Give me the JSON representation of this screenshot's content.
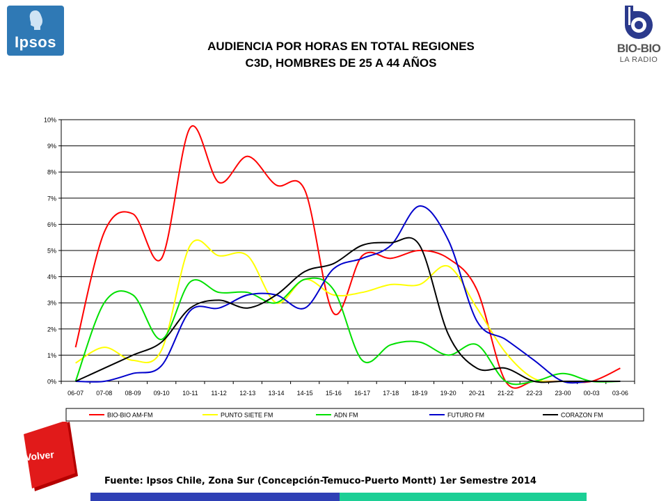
{
  "header": {
    "title_line1": "AUDIENCIA POR HORAS EN TOTAL REGIONES",
    "title_line2": "C3D, HOMBRES DE 25 A 44 AÑOS",
    "logo_left_text": "Ipsos",
    "logo_right_name": "BIO-BIO",
    "logo_right_sub": "LA RADIO"
  },
  "chart_data": {
    "type": "line",
    "categories": [
      "06-07",
      "07-08",
      "08-09",
      "09-10",
      "10-11",
      "11-12",
      "12-13",
      "13-14",
      "14-15",
      "15-16",
      "16-17",
      "17-18",
      "18-19",
      "19-20",
      "20-21",
      "21-22",
      "22-23",
      "23-00",
      "00-03",
      "03-06"
    ],
    "y_tick_labels": [
      "0%",
      "1%",
      "2%",
      "3%",
      "4%",
      "5%",
      "6%",
      "7%",
      "8%",
      "9%",
      "10%"
    ],
    "ylim": [
      0,
      10
    ],
    "y_unit": "%",
    "grid": true,
    "legend_position": "bottom",
    "series": [
      {
        "name": "BIO-BIO AM-FM",
        "color": "#ff0000",
        "values": [
          1.3,
          5.7,
          6.4,
          4.7,
          9.7,
          7.6,
          8.6,
          7.5,
          7.3,
          2.6,
          4.8,
          4.7,
          5.0,
          4.7,
          3.5,
          0.0,
          0.0,
          0.0,
          0.0,
          0.5
        ]
      },
      {
        "name": "PUNTO SIETE FM",
        "color": "#ffff00",
        "values": [
          0.7,
          1.3,
          0.8,
          1.2,
          5.2,
          4.8,
          4.8,
          3.0,
          3.9,
          3.3,
          3.4,
          3.7,
          3.7,
          4.4,
          2.8,
          1.1,
          0.1,
          0.0,
          0.0,
          0.0
        ]
      },
      {
        "name": "ADN FM",
        "color": "#00e000",
        "values": [
          0.0,
          3.0,
          3.3,
          1.6,
          3.8,
          3.4,
          3.4,
          3.0,
          3.9,
          3.5,
          0.8,
          1.4,
          1.5,
          1.0,
          1.4,
          0.0,
          0.0,
          0.3,
          0.0,
          0.0
        ]
      },
      {
        "name": "FUTURO FM",
        "color": "#0000cc",
        "values": [
          0.0,
          0.0,
          0.3,
          0.6,
          2.7,
          2.8,
          3.3,
          3.3,
          2.8,
          4.3,
          4.7,
          5.2,
          6.7,
          5.4,
          2.3,
          1.6,
          0.8,
          0.0,
          0.0,
          0.0
        ]
      },
      {
        "name": "CORAZON FM",
        "color": "#000000",
        "values": [
          0.0,
          0.5,
          1.0,
          1.5,
          2.8,
          3.1,
          2.8,
          3.3,
          4.2,
          4.5,
          5.2,
          5.3,
          5.2,
          1.8,
          0.5,
          0.5,
          0.0,
          0.0,
          0.0,
          0.0
        ]
      }
    ]
  },
  "footer": {
    "volver_label": "Volver",
    "source": "Fuente: Ipsos Chile, Zona Sur (Concepción-Temuco-Puerto Montt) 1er Semestre 2014"
  }
}
